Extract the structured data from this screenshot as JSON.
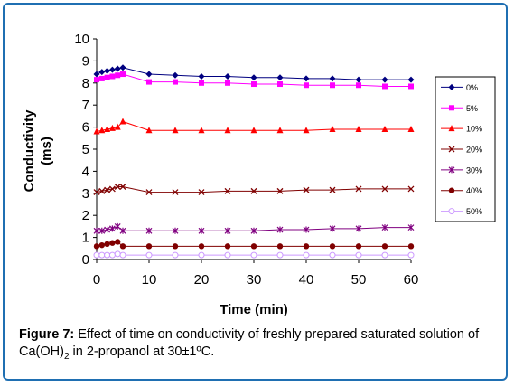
{
  "chart_data": {
    "type": "line",
    "title": "",
    "xlabel": "Time (min)",
    "ylabel_lines": [
      "Conductivity",
      "(ms)"
    ],
    "xlim": [
      0,
      60
    ],
    "ylim": [
      0,
      10
    ],
    "xticks": [
      "0",
      "10",
      "20",
      "30",
      "40",
      "50",
      "60"
    ],
    "yticks": [
      "0",
      "1",
      "2",
      "3",
      "4",
      "5",
      "6",
      "7",
      "8",
      "9",
      "10"
    ],
    "grid": false,
    "legend_position": "right",
    "x": [
      0,
      1,
      2,
      3,
      4,
      5,
      10,
      15,
      20,
      25,
      30,
      35,
      40,
      45,
      50,
      55,
      60
    ],
    "series": [
      {
        "name": "0%",
        "marker": "diamond",
        "color": "#000080",
        "values": [
          8.4,
          8.5,
          8.55,
          8.6,
          8.65,
          8.7,
          8.4,
          8.35,
          8.3,
          8.3,
          8.25,
          8.25,
          8.2,
          8.2,
          8.15,
          8.15,
          8.15
        ]
      },
      {
        "name": "5%",
        "marker": "square",
        "color": "#ff00ff",
        "values": [
          8.15,
          8.2,
          8.25,
          8.3,
          8.35,
          8.4,
          8.05,
          8.05,
          8.0,
          8.0,
          7.95,
          7.95,
          7.9,
          7.9,
          7.9,
          7.85,
          7.85
        ]
      },
      {
        "name": "10%",
        "marker": "triangle",
        "color": "#ff0000",
        "values": [
          5.8,
          5.85,
          5.9,
          5.95,
          6.0,
          6.25,
          5.85,
          5.85,
          5.85,
          5.85,
          5.85,
          5.85,
          5.85,
          5.9,
          5.9,
          5.9,
          5.9
        ]
      },
      {
        "name": "20%",
        "marker": "x",
        "color": "#800000",
        "values": [
          3.05,
          3.1,
          3.15,
          3.2,
          3.3,
          3.3,
          3.05,
          3.05,
          3.05,
          3.1,
          3.1,
          3.1,
          3.15,
          3.15,
          3.2,
          3.2,
          3.2
        ]
      },
      {
        "name": "30%",
        "marker": "star",
        "color": "#800080",
        "values": [
          1.3,
          1.3,
          1.35,
          1.4,
          1.5,
          1.3,
          1.3,
          1.3,
          1.3,
          1.3,
          1.3,
          1.35,
          1.35,
          1.4,
          1.4,
          1.45,
          1.45
        ]
      },
      {
        "name": "40%",
        "marker": "circle",
        "color": "#800000",
        "values": [
          0.6,
          0.65,
          0.7,
          0.75,
          0.8,
          0.6,
          0.6,
          0.6,
          0.6,
          0.6,
          0.6,
          0.6,
          0.6,
          0.6,
          0.6,
          0.6,
          0.6
        ]
      },
      {
        "name": "50%",
        "marker": "open-circle",
        "color": "#cc99ff",
        "values": [
          0.2,
          0.2,
          0.2,
          0.2,
          0.25,
          0.2,
          0.2,
          0.2,
          0.2,
          0.2,
          0.2,
          0.2,
          0.2,
          0.2,
          0.2,
          0.2,
          0.2
        ]
      }
    ]
  },
  "caption": {
    "label": "Figure 7:",
    "text_part1": " Effect of time on conductivity of freshly prepared saturated solution of Ca(OH)",
    "subscript": "2",
    "text_part2": " in  2-propanol at  30±1ºC."
  }
}
